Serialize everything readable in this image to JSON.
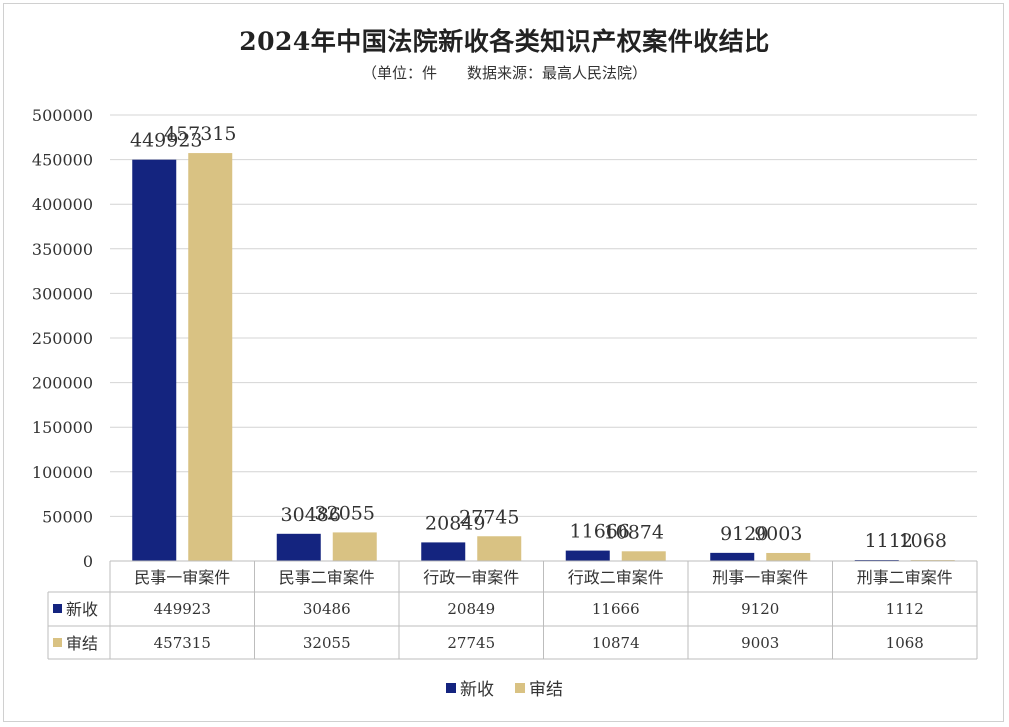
{
  "chart_data": {
    "type": "bar",
    "title": "2024年中国法院新收各类知识产权案件收结比",
    "subtitle": "（单位：件　　数据来源：最高人民法院）",
    "categories": [
      "民事一审案件",
      "民事二审案件",
      "行政一审案件",
      "行政二审案件",
      "刑事一审案件",
      "刑事二审案件"
    ],
    "series": [
      {
        "name": "新收",
        "color": "#14247f",
        "values": [
          449923,
          30486,
          20849,
          11666,
          9120,
          1112
        ]
      },
      {
        "name": "审结",
        "color": "#d9c283",
        "values": [
          457315,
          32055,
          27745,
          10874,
          9003,
          1068
        ]
      }
    ],
    "ylim": [
      0,
      500000
    ],
    "yticks": [
      0,
      50000,
      100000,
      150000,
      200000,
      250000,
      300000,
      350000,
      400000,
      450000,
      500000
    ],
    "grid": true,
    "legend": "bottom",
    "data_table": true
  }
}
